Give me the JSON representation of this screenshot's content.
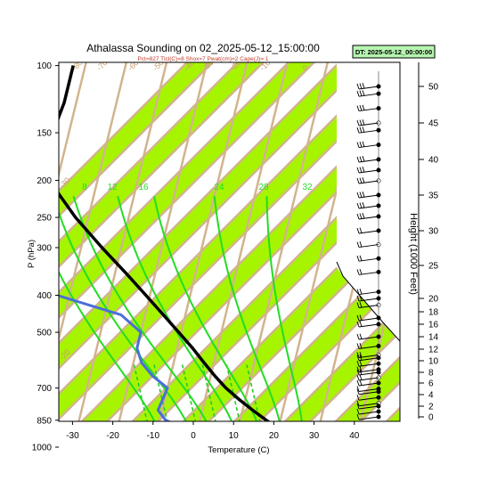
{
  "chart_data": {
    "type": "line",
    "title": "Athalassa Sounding on 02_2025-05-12_15:00:00",
    "subtitle": "Pct=827 Tlcl(C)=8 Shox=7 Pwat(cm)=2 Cape(J)= 1",
    "dt_label": "DT: 2025-05-12_00:00:00",
    "xlabel": "Temperature (C)",
    "ylabel": "P (hPa)",
    "y2label": "Height (1000 Feet)",
    "x_ticks": [
      "-30",
      "-20",
      "-10",
      "0",
      "10",
      "20",
      "30",
      "40"
    ],
    "x_tick_values": [
      -30,
      -20,
      -10,
      0,
      10,
      20,
      30,
      40
    ],
    "p_ticks": [
      "100",
      "150",
      "200",
      "250",
      "300",
      "400",
      "500",
      "700",
      "850",
      "1000"
    ],
    "p_tick_values": [
      100,
      150,
      200,
      250,
      300,
      400,
      500,
      700,
      850,
      1000
    ],
    "height_ticks": [
      "50",
      "45",
      "40",
      "35",
      "30",
      "25",
      "20",
      "18",
      "16",
      "14",
      "12",
      "10",
      "8",
      "6",
      "4",
      "2",
      "0"
    ],
    "height_tick_values": [
      50,
      45,
      40,
      35,
      30,
      25,
      20,
      18,
      16,
      14,
      12,
      10,
      8,
      6,
      4,
      2,
      0
    ],
    "mixing_ratio_labels": [
      "8",
      "12",
      "16",
      "24",
      "28",
      "32"
    ],
    "mixing_ratio_values": [
      8,
      12,
      16,
      24,
      28,
      32
    ],
    "band_labels": [
      "-80",
      "-70",
      "-60",
      "-50",
      "-40",
      "-30",
      "-20",
      "-10",
      "0",
      "10",
      "20",
      "30",
      "-30",
      "-20",
      "-10"
    ],
    "series": [
      {
        "name": "temperature",
        "color": "#000000",
        "p": [
          1000,
          975,
          950,
          925,
          900,
          850,
          800,
          750,
          700,
          650,
          600,
          550,
          500,
          450,
          400,
          350,
          300,
          250,
          200,
          175,
          150,
          125,
          110,
          100
        ],
        "t": [
          26,
          25,
          25,
          23,
          20.5,
          16.5,
          12.5,
          8.5,
          4.5,
          1,
          -2.5,
          -6.2,
          -10.6,
          -15.5,
          -21,
          -27.3,
          -34.8,
          -43.2,
          -52,
          -54,
          -54,
          -53,
          -53,
          -53
        ]
      },
      {
        "name": "dewpoint",
        "color": "#4a6fd8",
        "p": [
          1000,
          975,
          950,
          925,
          900,
          850,
          800,
          750,
          700,
          650,
          600,
          550,
          500,
          450,
          400,
          375,
          350,
          300,
          250,
          200,
          175,
          150,
          125,
          110,
          100
        ],
        "t": [
          13.5,
          11.8,
          6,
          0.8,
          -2.5,
          -8.5,
          -11,
          -10.5,
          -10,
          -14.5,
          -18,
          -20,
          -20,
          -26,
          -43,
          -58,
          -58,
          -62,
          -68,
          -76,
          -78,
          -80,
          -79,
          -77,
          -75
        ]
      }
    ],
    "wind_barbs_levels_kft": [
      50,
      49,
      47,
      45,
      44,
      42,
      40,
      38.5,
      37,
      35,
      33.5,
      32,
      30,
      28,
      26,
      24,
      21,
      20,
      19,
      17,
      16,
      14,
      12.5,
      11,
      10.5,
      9.5,
      8.5,
      8,
      7,
      6,
      5,
      4.5,
      3.5,
      2.5,
      2,
      1,
      0
    ]
  }
}
